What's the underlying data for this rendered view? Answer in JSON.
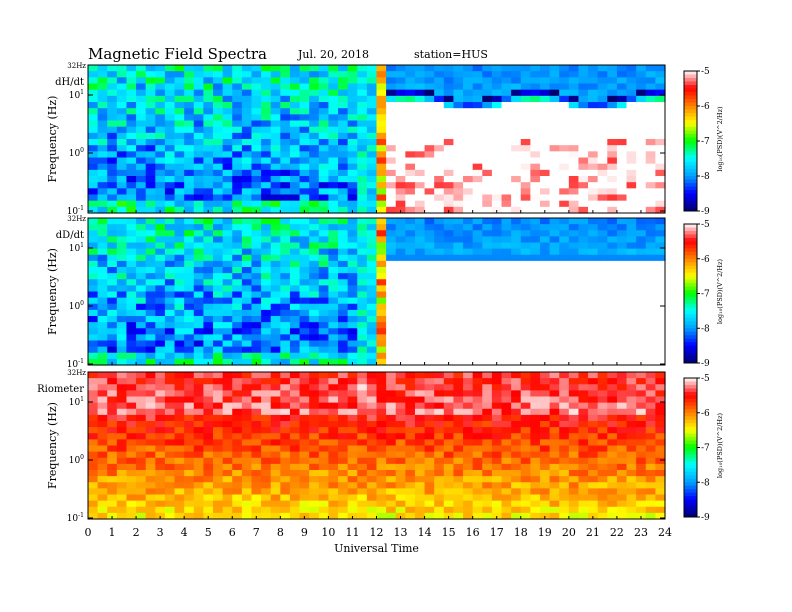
{
  "header": {
    "title": "Magnetic  Field  Spectra",
    "date": "Jul.  20, 2018",
    "station": "station=HUS"
  },
  "chart_data": {
    "type": "heatmap",
    "xlabel": "Universal  Time",
    "xlim": [
      0,
      24
    ],
    "x_ticks": [
      "0",
      "1",
      "2",
      "3",
      "4",
      "5",
      "6",
      "7",
      "8",
      "9",
      "10",
      "11",
      "12",
      "13",
      "14",
      "15",
      "16",
      "17",
      "18",
      "19",
      "20",
      "21",
      "22",
      "23",
      "24"
    ],
    "ylabel": "Frequency  (Hz)",
    "y_scale": "log",
    "y_top_label": "32Hz",
    "y_ticks": [
      {
        "base": "10",
        "exp": "1"
      },
      {
        "base": "10",
        "exp": "0"
      },
      {
        "base": "10",
        "exp": "-1"
      }
    ],
    "colorbar": {
      "label": "log₁₀(PSD)(V^2/Hz)",
      "ticks": [
        "-5",
        "-6",
        "-7",
        "-8",
        "-9"
      ],
      "range": [
        -9,
        -5
      ],
      "colors": [
        "#000070",
        "#0000ff",
        "#00a0ff",
        "#00ffff",
        "#00ff00",
        "#ffff00",
        "#ff8000",
        "#ff0000",
        "#ffffff"
      ]
    },
    "panels": [
      {
        "name": "dH/dt",
        "background_level": -7.9,
        "disturbance_start": 12.3
      },
      {
        "name": "dD/dt",
        "background_level": -7.9,
        "disturbance_start": 12.3
      },
      {
        "name": "Riometer",
        "background_level": -5.7
      }
    ]
  }
}
